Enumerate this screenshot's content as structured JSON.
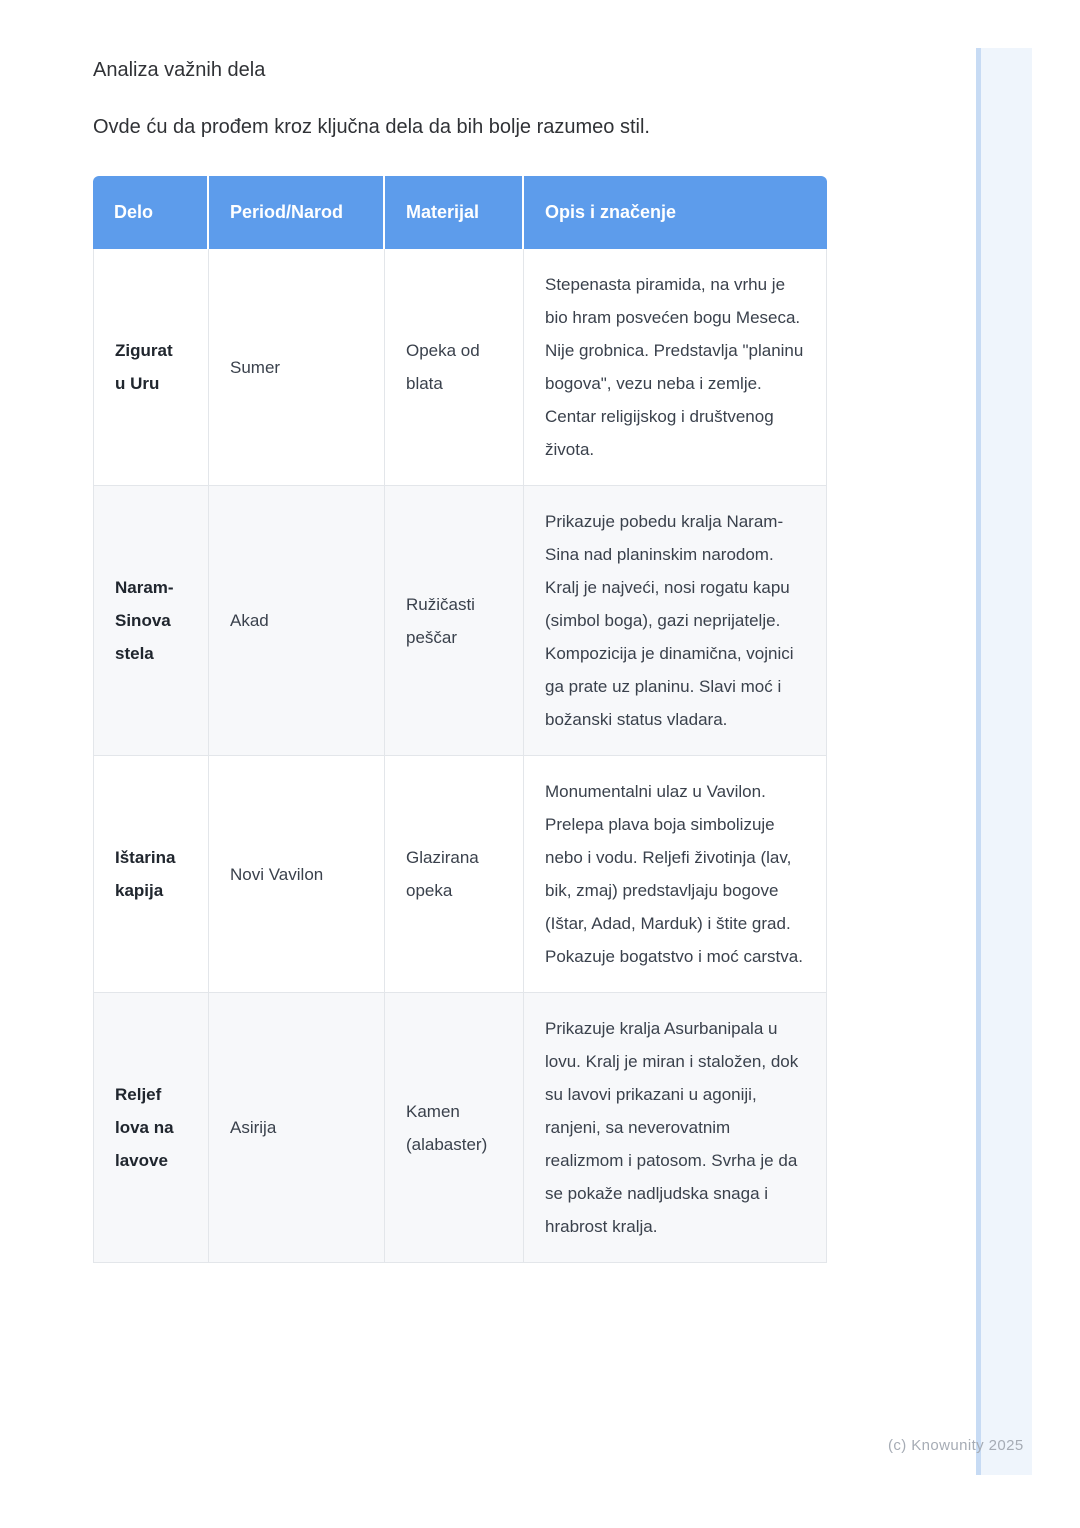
{
  "page": {
    "title": "Analiza važnih dela",
    "intro": "Ovde ću da prođem kroz ključna dela da bih bolje razumeo stil.",
    "watermark": "(c) Knowunity 2025"
  },
  "colors": {
    "header-bg": "#5d9ceb",
    "header-text": "#ffffff",
    "row-alt-bg": "#f7f8fa",
    "border": "#e3e6ea",
    "body-text": "#3a414c",
    "strong-text": "#20262e",
    "watermark-text": "#a6acb5",
    "edge-line": "#c7dbf4",
    "edge-panel": "#eff5fc"
  },
  "table": {
    "headers": [
      "Delo",
      "Period/Narod",
      "Materijal",
      "Opis i značenje"
    ],
    "rows": [
      {
        "delo": "Zigurat u Uru",
        "period": "Sumer",
        "materijal": "Opeka od blata",
        "opis": "Stepenasta piramida, na vrhu je bio hram posvećen bogu Meseca. Nije grobnica. Predstavlja \"planinu bogova\", vezu neba i zemlje. Centar religijskog i društvenog života."
      },
      {
        "delo": "Naram-Sinova stela",
        "period": "Akad",
        "materijal": "Ružičasti peščar",
        "opis": "Prikazuje pobedu kralja Naram-Sina nad planinskim narodom. Kralj je najveći, nosi rogatu kapu (simbol boga), gazi neprijatelje. Kompozicija je dinamična, vojnici ga prate uz planinu. Slavi moć i božanski status vladara."
      },
      {
        "delo": "Ištarina kapija",
        "period": "Novi Vavilon",
        "materijal": "Glazirana opeka",
        "opis": "Monumentalni ulaz u Vavilon. Prelepa plava boja simbolizuje nebo i vodu. Reljefi životinja (lav, bik, zmaj) predstavljaju bogove (Ištar, Adad, Marduk) i štite grad. Pokazuje bogatstvo i moć carstva."
      },
      {
        "delo": "Reljef lova na lavove",
        "period": "Asirija",
        "materijal": "Kamen (alabaster)",
        "opis": "Prikazuje kralja Asurbanipala u lovu. Kralj je miran i staložen, dok su lavovi prikazani u agoniji, ranjeni, sa neverovatnim realizmom i patosom. Svrha je da se pokaže nadljudska snaga i hrabrost kralja."
      }
    ]
  }
}
